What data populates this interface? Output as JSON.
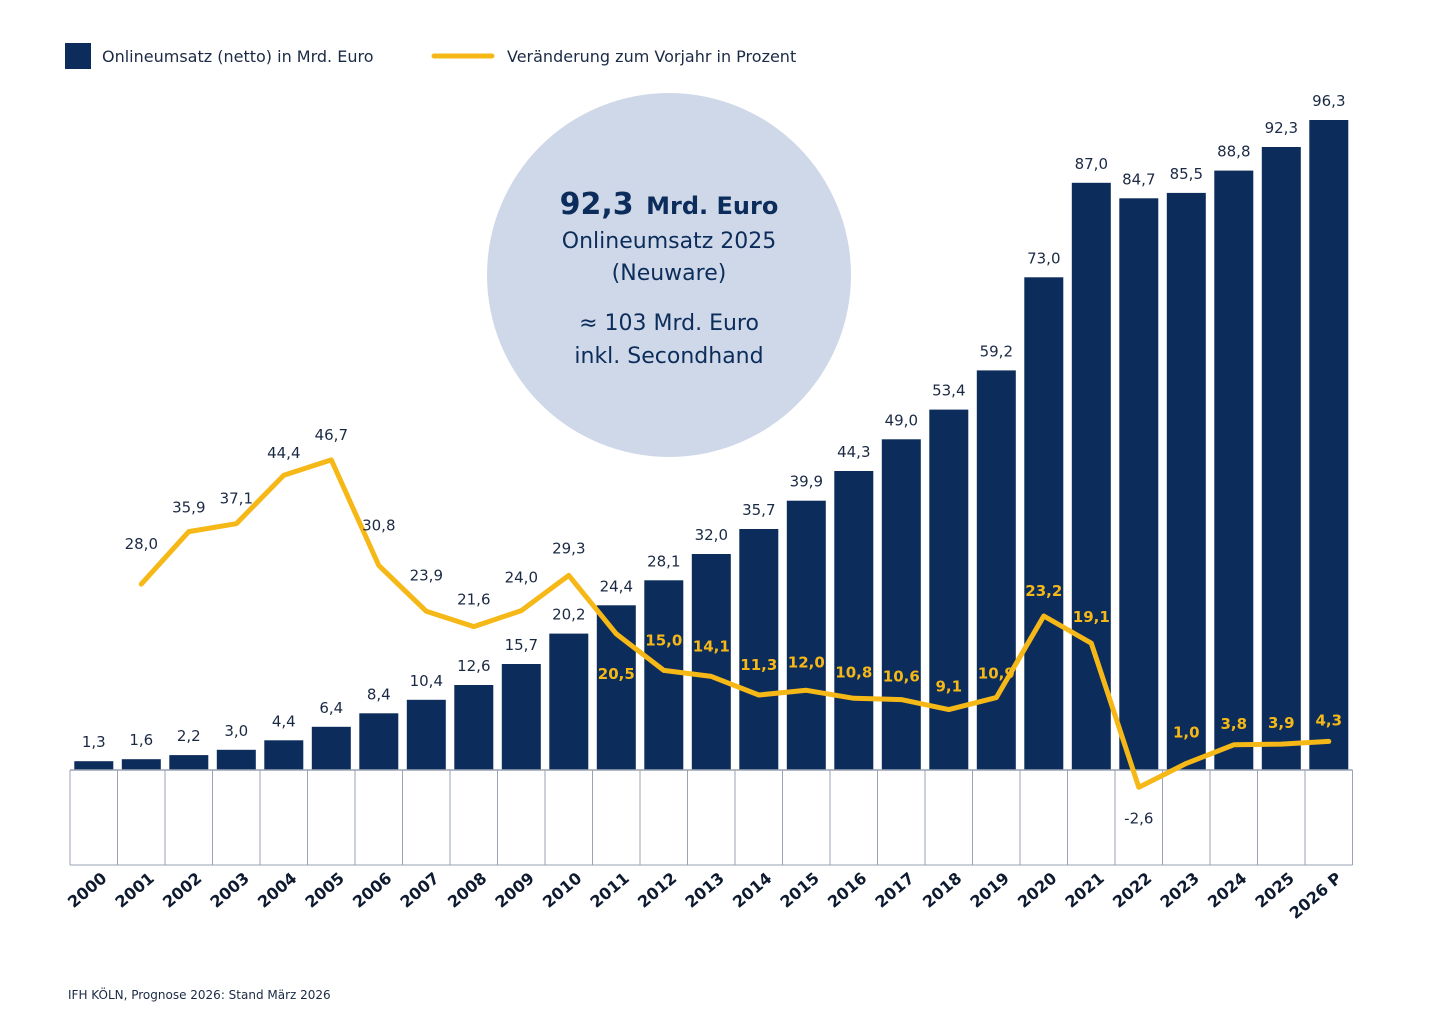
{
  "colors": {
    "bar": "#0c2d5b",
    "line": "#f6b817",
    "circle": "#cfd8e8",
    "grid": "#9aa3b3",
    "text": "#1b2a44"
  },
  "legend": {
    "bar_label": "Onlineumsatz (netto) in Mrd. Euro",
    "line_label": "Veränderung zum Vorjahr in Prozent"
  },
  "highlight": {
    "value": "92,3",
    "unit": "Mrd. Euro",
    "line1": "Onlineumsatz 2025",
    "line2": "(Neuware)",
    "line3": "≈ 103 Mrd. Euro",
    "line4": "inkl. Secondhand"
  },
  "source": "IFH KÖLN, Prognose 2026: Stand März 2026",
  "chart_data": {
    "type": "bar",
    "categories": [
      "2000",
      "2001",
      "2002",
      "2003",
      "2004",
      "2005",
      "2006",
      "2007",
      "2008",
      "2009",
      "2010",
      "2011",
      "2012",
      "2013",
      "2014",
      "2015",
      "2016",
      "2017",
      "2018",
      "2019",
      "2020",
      "2021",
      "2022",
      "2023",
      "2024",
      "2025",
      "2026 P"
    ],
    "series": [
      {
        "name": "Onlineumsatz (netto) in Mrd. Euro",
        "type": "bar",
        "values": [
          1.3,
          1.6,
          2.2,
          3.0,
          4.4,
          6.4,
          8.4,
          10.4,
          12.6,
          15.7,
          20.2,
          24.4,
          28.1,
          32.0,
          35.7,
          39.9,
          44.3,
          49.0,
          53.4,
          59.2,
          73.0,
          87.0,
          84.7,
          85.5,
          88.8,
          92.3,
          96.3
        ],
        "labels": [
          "1,3",
          "1,6",
          "2,2",
          "3,0",
          "4,4",
          "6,4",
          "8,4",
          "10,4",
          "12,6",
          "15,7",
          "20,2",
          "24,4",
          "28,1",
          "32,0",
          "35,7",
          "39,9",
          "44,3",
          "49,0",
          "53,4",
          "59,2",
          "73,0",
          "87,0",
          "84,7",
          "85,5",
          "88,8",
          "92,3",
          "96,3"
        ]
      },
      {
        "name": "Veränderung zum Vorjahr in Prozent",
        "type": "line",
        "values": [
          null,
          28.0,
          35.9,
          37.1,
          44.4,
          46.7,
          30.8,
          23.9,
          21.6,
          24.0,
          29.3,
          20.5,
          15.0,
          14.1,
          11.3,
          12.0,
          10.8,
          10.6,
          9.1,
          10.9,
          23.2,
          19.1,
          -2.6,
          1.0,
          3.8,
          3.9,
          4.3
        ],
        "labels": [
          "",
          "28,0",
          "35,9",
          "37,1",
          "44,4",
          "46,7",
          "30,8",
          "23,9",
          "21,6",
          "24,0",
          "29,3",
          "20,5",
          "15,0",
          "14,1",
          "11,3",
          "12,0",
          "10,8",
          "10,6",
          "9,1",
          "10,9",
          "23,2",
          "19,1",
          "-2,6",
          "1,0",
          "3,8",
          "3,9",
          "4,3"
        ]
      }
    ],
    "grid": false,
    "legend_position": "top-left"
  }
}
